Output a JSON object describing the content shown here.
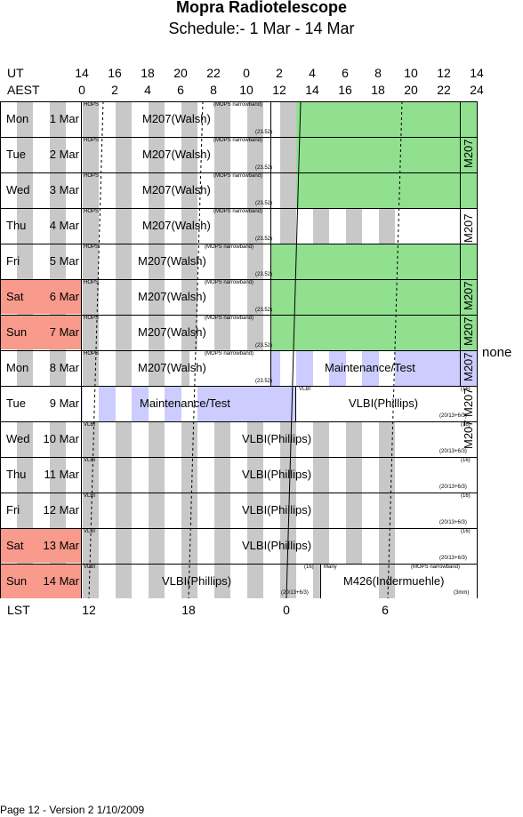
{
  "title": "Mopra Radiotelescope",
  "subtitle": "Schedule:- 1  Mar - 14 Mar",
  "header": {
    "ut_label": "UT",
    "aest_label": "AEST",
    "ut_ticks": [
      "14",
      "16",
      "18",
      "20",
      "22",
      "0",
      "2",
      "4",
      "6",
      "8",
      "10",
      "12",
      "14"
    ],
    "aest_ticks": [
      "0",
      "2",
      "4",
      "6",
      "8",
      "10",
      "12",
      "14",
      "16",
      "18",
      "20",
      "22",
      "24"
    ]
  },
  "days": [
    {
      "dow": "Mon",
      "date": "1 Mar",
      "weekend": false
    },
    {
      "dow": "Tue",
      "date": "2 Mar",
      "weekend": false
    },
    {
      "dow": "Wed",
      "date": "3 Mar",
      "weekend": false
    },
    {
      "dow": "Thu",
      "date": "4 Mar",
      "weekend": false
    },
    {
      "dow": "Fri",
      "date": "5 Mar",
      "weekend": false
    },
    {
      "dow": "Sat",
      "date": "6 Mar",
      "weekend": true
    },
    {
      "dow": "Sun",
      "date": "7 Mar",
      "weekend": true
    },
    {
      "dow": "Mon",
      "date": "8 Mar",
      "weekend": false
    },
    {
      "dow": "Tue",
      "date": "9 Mar",
      "weekend": false
    },
    {
      "dow": "Wed",
      "date": "10 Mar",
      "weekend": false
    },
    {
      "dow": "Thu",
      "date": "11 Mar",
      "weekend": false
    },
    {
      "dow": "Fri",
      "date": "12 Mar",
      "weekend": false
    },
    {
      "dow": "Sat",
      "date": "13 Mar",
      "weekend": true
    },
    {
      "dow": "Sun",
      "date": "14 Mar",
      "weekend": true
    }
  ],
  "labels": {
    "hops": "HOPS",
    "vlbi_small": "VLBI",
    "mops_nb": "(MOPS narrowband)",
    "freq_2352": "(23.52)",
    "m207": "M207(Walsh)",
    "m207_short": "M207",
    "maintenance": "Maintenance/Test",
    "vlbi": "VLBI(Phillips)",
    "code16": "(16)",
    "code20": "(20/13+6/3)",
    "many": "Many",
    "m426": "M426(Indermuehle)",
    "mm3": "(3mm)",
    "none": "none"
  },
  "lst": {
    "label": "LST",
    "ticks": [
      "12",
      "18",
      "0",
      "6"
    ]
  },
  "footer": "Page 12 - Version 2  1/10/2009",
  "colors": {
    "green": "#90e090",
    "lavender": "#ccccff",
    "salmon": "#f89a8c",
    "stripe": "#c8c8c8"
  }
}
